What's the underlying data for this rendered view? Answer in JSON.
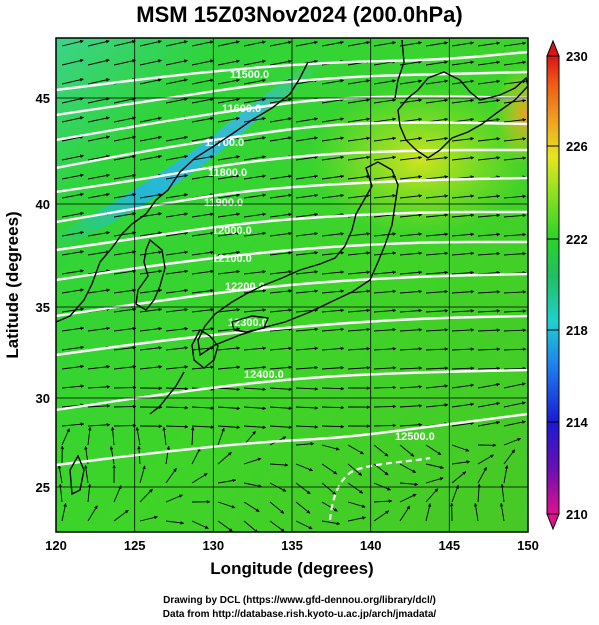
{
  "title": "MSM 15Z03Nov2024 (200.0hPa)",
  "map": {
    "xlabel": "Longitude (degrees)",
    "ylabel": "Latitude  (degrees)",
    "lon_range": [
      120,
      150
    ],
    "lat_range": [
      22.5,
      48
    ],
    "lon_ticks": [
      "120",
      "125",
      "130",
      "135",
      "140",
      "145",
      "150"
    ],
    "lat_ticks": [
      "25",
      "30",
      "35",
      "40",
      "45"
    ],
    "gridlines": true
  },
  "colorbar": {
    "min": 210,
    "max": 230,
    "labels": [
      "230",
      "226",
      "222",
      "218",
      "214",
      "210"
    ],
    "colors": [
      "#e0108e",
      "#6a0fb5",
      "#1a1ad2",
      "#1e7cf0",
      "#1fd0d0",
      "#20c060",
      "#28d528",
      "#8fe020",
      "#e6e61e",
      "#f0a020",
      "#f05a14",
      "#d81414"
    ]
  },
  "contours": {
    "color": "#ffffff",
    "labels": [
      "11500.0",
      "11600.0",
      "11700.0",
      "11800.0",
      "11900.0",
      "12000.0",
      "12100.0",
      "12200.0",
      "12300.0",
      "12400.0",
      "12500.0"
    ]
  },
  "credits": {
    "line1": "Drawing by DCL (https://www.gfd-dennou.org/library/dcl/)",
    "line2": "Data from http://database.rish.kyoto-u.ac.jp/arch/jmadata/"
  }
}
